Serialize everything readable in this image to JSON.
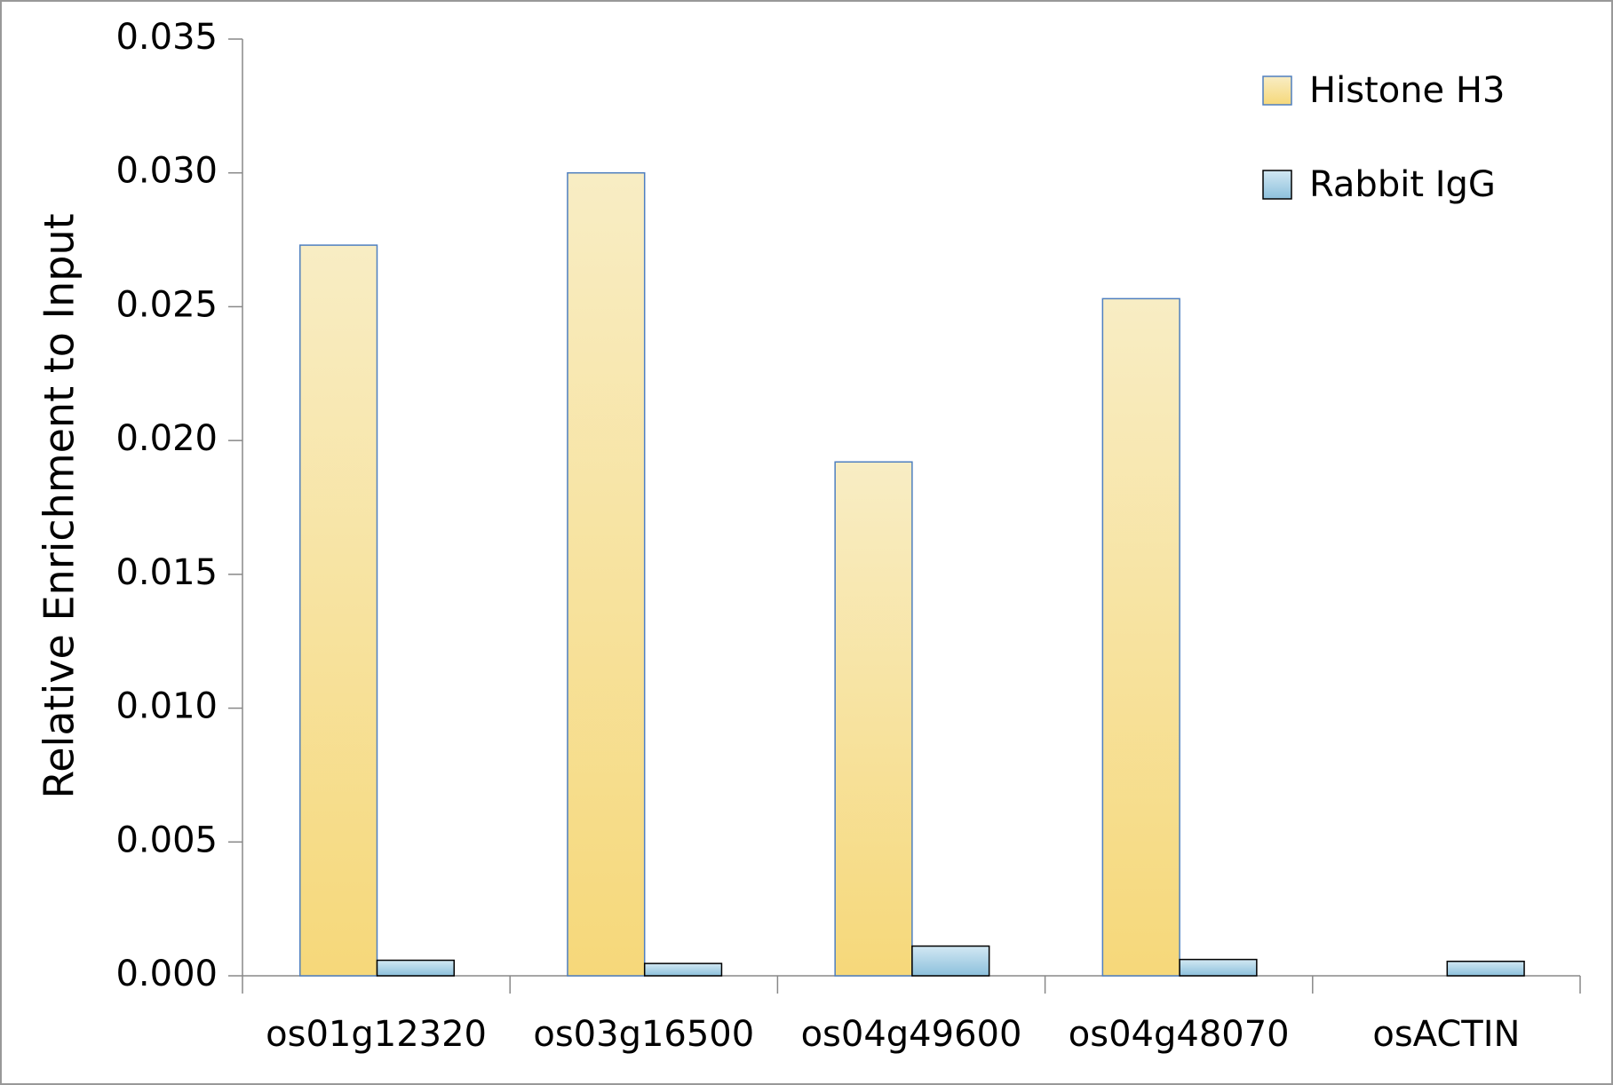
{
  "chart_data": {
    "type": "bar",
    "y_label": "Relative Enrichment to Input",
    "categories": [
      "os01g12320",
      "os03g16500",
      "os04g49600",
      "os04g48070",
      "osACTIN"
    ],
    "series": [
      {
        "name": "Histone H3",
        "color": "#f6d87a",
        "values": [
          0.0273,
          0.03,
          0.0192,
          0.0253,
          0
        ]
      },
      {
        "name": "Rabbit IgG",
        "color": "#8cc0dc",
        "values": [
          0.00058,
          0.00046,
          0.00111,
          0.00061,
          0.00054
        ]
      }
    ],
    "ylim": [
      0,
      0.035
    ],
    "yticks": [
      {
        "value": 0,
        "label": "0.000"
      },
      0.005,
      {
        "value": 0.01,
        "label": "0.010"
      },
      0.015,
      {
        "value": 0.02,
        "label": "0.020"
      },
      0.025,
      {
        "value": 0.03,
        "label": "0.030"
      },
      0.035
    ],
    "legend": "upper right"
  }
}
